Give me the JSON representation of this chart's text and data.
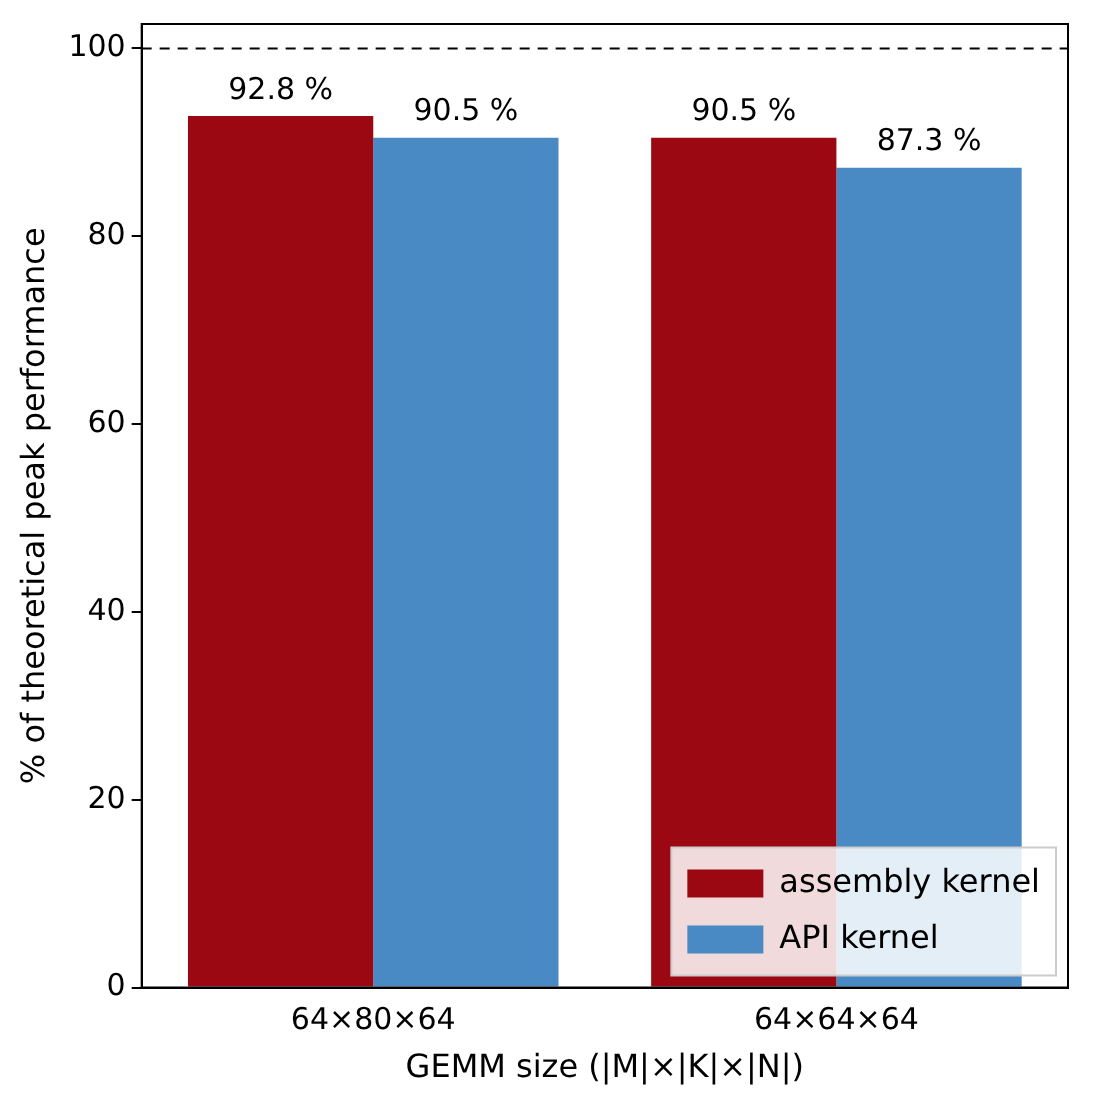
{
  "chart_data": {
    "type": "bar",
    "xlabel": "GEMM size (|M|×|K|×|N|)",
    "ylabel": "% of theoretical peak performance",
    "categories": [
      "64×80×64",
      "64×64×64"
    ],
    "series": [
      {
        "name": "assembly kernel",
        "color": "#9b0812",
        "values": [
          92.8,
          90.5
        ],
        "value_labels": [
          "92.8 %",
          "90.5 %"
        ]
      },
      {
        "name": "API kernel",
        "color": "#4a8ac4",
        "values": [
          90.5,
          87.3
        ],
        "value_labels": [
          "90.5 %",
          "87.3 %"
        ]
      }
    ],
    "ylim": [
      0,
      102.6
    ],
    "yticks": [
      0,
      20,
      40,
      60,
      80,
      100
    ],
    "grid": false,
    "legend": "bottom right",
    "ref_lines": [
      {
        "axis": "y",
        "value": 100,
        "color": "#000000",
        "line_style": "dashed"
      }
    ]
  }
}
